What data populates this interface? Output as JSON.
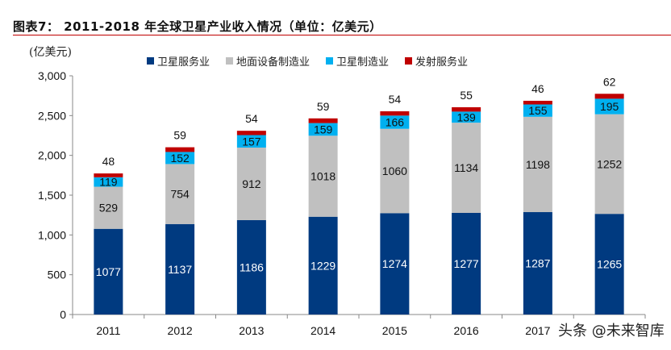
{
  "title": "图表7：  2011-2018 年全球卫星产业收入情况（单位：亿美元）",
  "watermark": "头条 @未来智库",
  "chart_data": {
    "type": "bar",
    "stacked": true,
    "ylabel": "(亿美元)",
    "ylim": [
      0,
      3000
    ],
    "yticks": [
      "0",
      "500",
      "1,000",
      "1,500",
      "2,000",
      "2,500",
      "3,000"
    ],
    "ytick_values": [
      0,
      500,
      1000,
      1500,
      2000,
      2500,
      3000
    ],
    "grid": false,
    "legend_position": "top",
    "categories": [
      "2011",
      "2012",
      "2013",
      "2014",
      "2015",
      "2016",
      "2017",
      "2018"
    ],
    "series": [
      {
        "name": "卫星服务业",
        "color": "#003a80",
        "label_color": "#ffffff",
        "values": [
          1077,
          1137,
          1186,
          1229,
          1274,
          1277,
          1287,
          1265
        ]
      },
      {
        "name": "地面设备制造业",
        "color": "#c0c0c0",
        "label_color": "#111111",
        "values": [
          529,
          754,
          912,
          1018,
          1060,
          1134,
          1198,
          1252
        ]
      },
      {
        "name": "卫星制造业",
        "color": "#00b0f0",
        "label_color": "#111111",
        "values": [
          119,
          152,
          157,
          159,
          166,
          139,
          155,
          195
        ]
      },
      {
        "name": "发射服务业",
        "color": "#c00000",
        "label_color": "#111111",
        "values": [
          48,
          59,
          54,
          59,
          54,
          55,
          46,
          62
        ]
      }
    ]
  }
}
